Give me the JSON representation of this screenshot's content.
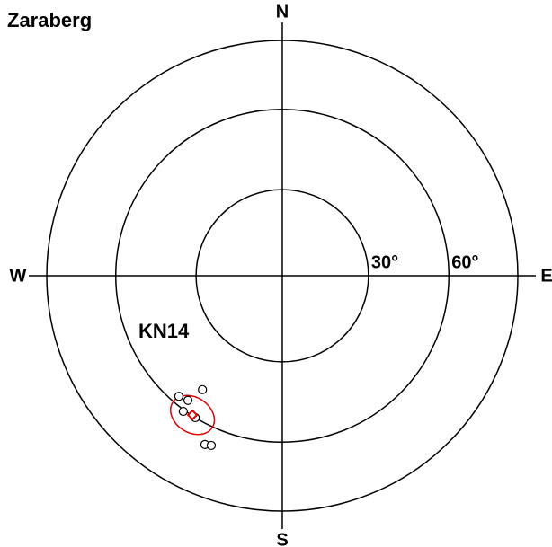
{
  "chart_data": {
    "type": "polar",
    "projection": "equal-area",
    "title": "Zaraberg",
    "annotation": "KN14",
    "directions": [
      "N",
      "E",
      "S",
      "W"
    ],
    "rlim": [
      0,
      90
    ],
    "rticks": [
      {
        "value": 30,
        "label": "30°"
      },
      {
        "value": 60,
        "label": "60°"
      }
    ],
    "points": {
      "color": "#000000",
      "azimuth": [
        215,
        220.6,
        217.1,
        216.1,
        211.5,
        204.6,
        202.7
      ],
      "colatitude": [
        49.4,
        57,
        56,
        60.6,
        60,
        67.8,
        67.1
      ]
    },
    "mean": {
      "color": "#e00000",
      "azimuth": 212.8,
      "colatitude": 59.7,
      "a95": 7
    }
  }
}
